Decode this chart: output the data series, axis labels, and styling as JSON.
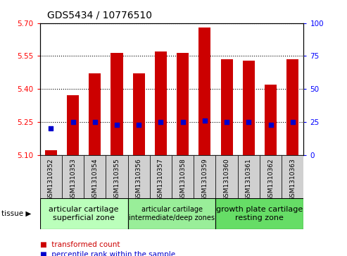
{
  "title": "GDS5434 / 10776510",
  "samples": [
    "GSM1310352",
    "GSM1310353",
    "GSM1310354",
    "GSM1310355",
    "GSM1310356",
    "GSM1310357",
    "GSM1310358",
    "GSM1310359",
    "GSM1310360",
    "GSM1310361",
    "GSM1310362",
    "GSM1310363"
  ],
  "bar_values": [
    5.12,
    5.37,
    5.47,
    5.565,
    5.47,
    5.57,
    5.565,
    5.68,
    5.535,
    5.53,
    5.42,
    5.535
  ],
  "percentile_values": [
    20,
    25,
    25,
    23,
    23,
    25,
    25,
    26,
    25,
    25,
    23,
    25
  ],
  "ymin": 5.1,
  "ymax": 5.7,
  "yright_min": 0,
  "yright_max": 100,
  "yticks_left": [
    5.1,
    5.25,
    5.4,
    5.55,
    5.7
  ],
  "yticks_right": [
    0,
    25,
    50,
    75,
    100
  ],
  "bar_color": "#cc0000",
  "dot_color": "#0000cc",
  "groups": [
    {
      "label": "articular cartilage\nsuperficial zone",
      "indices": [
        0,
        1,
        2,
        3
      ],
      "color": "#bbffbb",
      "fontsize": 8
    },
    {
      "label": "articular cartilage\nintermediate/deep zones",
      "indices": [
        4,
        5,
        6,
        7
      ],
      "color": "#99ee99",
      "fontsize": 7
    },
    {
      "label": "growth plate cartilage\nresting zone",
      "indices": [
        8,
        9,
        10,
        11
      ],
      "color": "#66dd66",
      "fontsize": 8
    }
  ],
  "tissue_label": "tissue",
  "legend_bar_label": "transformed count",
  "legend_dot_label": "percentile rank within the sample",
  "bar_width": 0.55,
  "title_fontsize": 10
}
